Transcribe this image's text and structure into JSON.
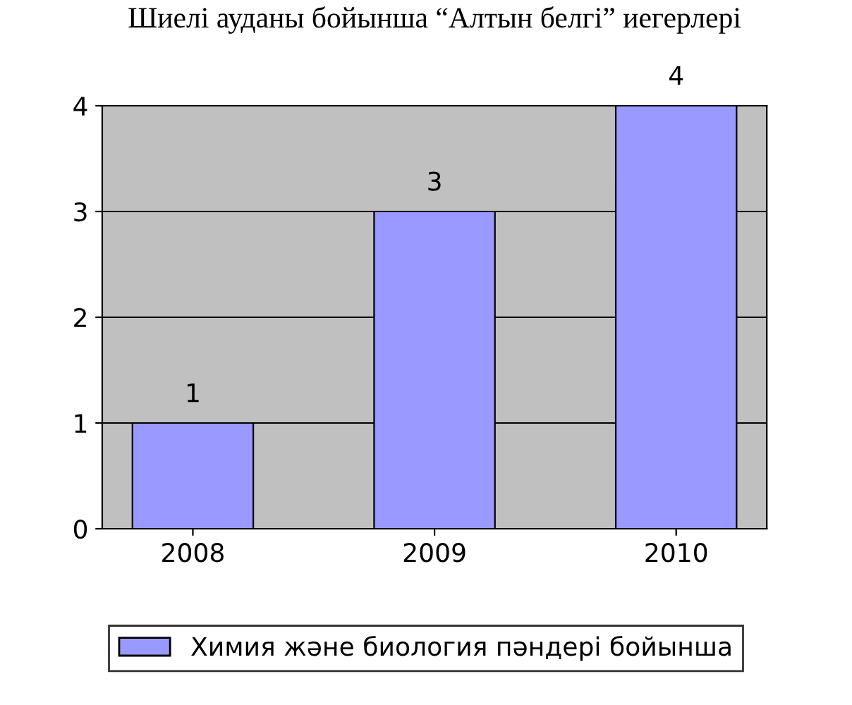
{
  "chart_data": {
    "type": "bar",
    "title": "Шиелі ауданы бойынша “Алтын белгі” иегерлері",
    "categories": [
      "2008",
      "2009",
      "2010"
    ],
    "series": [
      {
        "name": "Химия және биология пәндері бойынша",
        "color": "#9999ff",
        "values": [
          1,
          3,
          4
        ]
      }
    ],
    "ylim": [
      0,
      4
    ],
    "yticks": [
      0,
      1,
      2,
      3,
      4
    ],
    "grid": "y",
    "legend": "bottom",
    "data_labels": true
  }
}
